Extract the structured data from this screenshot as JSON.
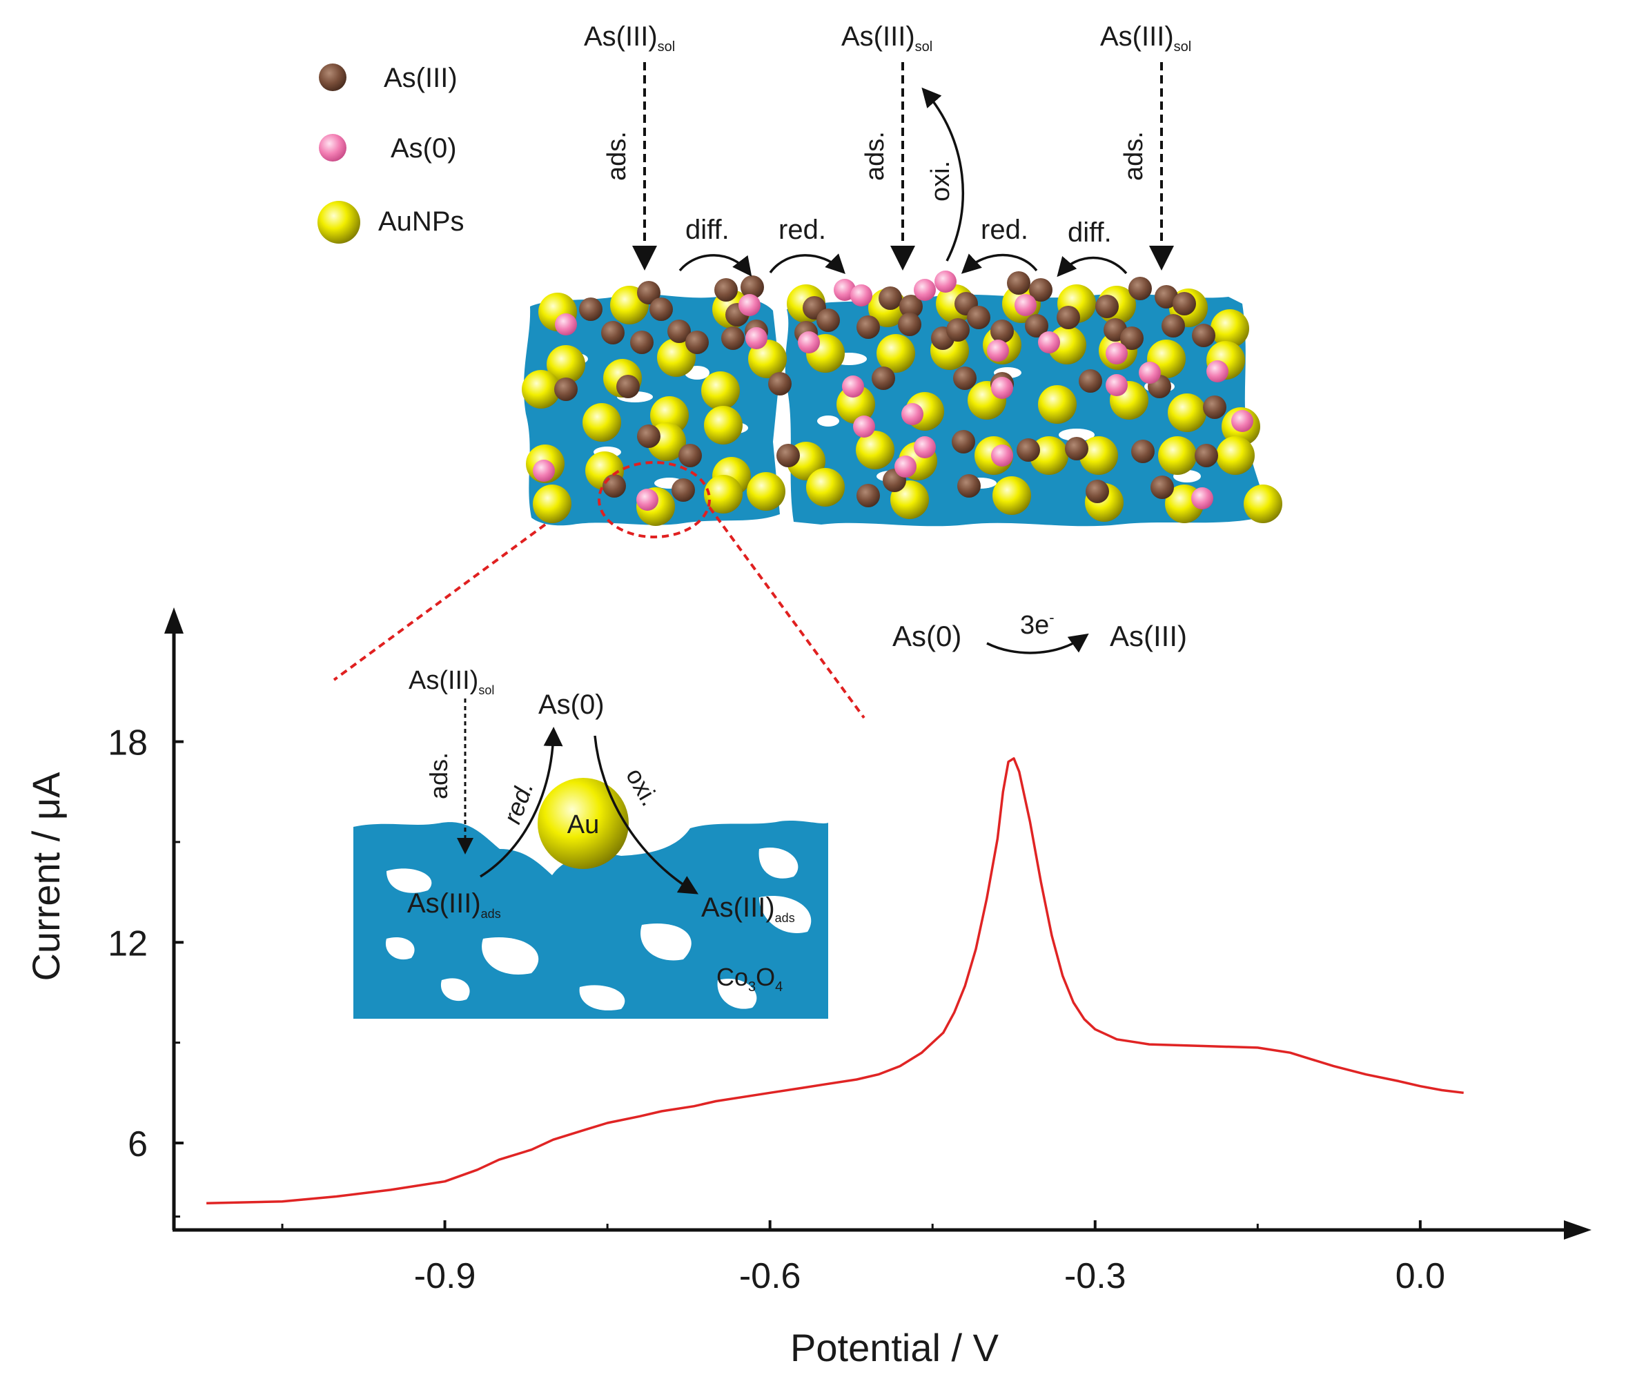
{
  "legend": {
    "as3": "As(III)",
    "as0": "As(0)",
    "aunp": "AuNPs"
  },
  "top_schematic": {
    "sol_base": "As(III)",
    "sol_sub": "sol",
    "ads": "ads.",
    "diff": "diff.",
    "red": "red.",
    "oxi": "oxi."
  },
  "reaction": {
    "reactant": "As(0)",
    "electrons": "3e",
    "electrons_sup": "-",
    "product": "As(III)"
  },
  "inset": {
    "sol_base": "As(III)",
    "sol_sub": "sol",
    "as0": "As(0)",
    "ads": "ads.",
    "red": "red.",
    "oxi": "oxi.",
    "au": "Au",
    "ads_base": "As(III)",
    "ads_sub": "ads",
    "support_base": "Co",
    "support_sub1": "3",
    "support_o": "O",
    "support_sub2": "4"
  },
  "colors": {
    "curve": "#e02424",
    "co3o4": "#1a8fc0",
    "as3": "#7a4f3a",
    "as0": "#f37fb4",
    "aunp": "#f2ee00",
    "zoom": "#e02020"
  },
  "chart_data": {
    "type": "line",
    "xlabel": "Potential / V",
    "ylabel": "Current / μA",
    "xlim": [
      -1.15,
      0.13
    ],
    "ylim": [
      3.4,
      21.5
    ],
    "xticks": [
      -0.9,
      -0.6,
      -0.3,
      0.0
    ],
    "xtick_labels": [
      "-0.9",
      "-0.6",
      "-0.3",
      "0.0"
    ],
    "yticks": [
      6,
      12,
      18
    ],
    "ytick_labels": [
      "6",
      "12",
      "18"
    ],
    "x": [
      -1.12,
      -1.05,
      -1.0,
      -0.95,
      -0.9,
      -0.87,
      -0.85,
      -0.82,
      -0.8,
      -0.77,
      -0.75,
      -0.72,
      -0.7,
      -0.67,
      -0.65,
      -0.62,
      -0.6,
      -0.57,
      -0.55,
      -0.52,
      -0.5,
      -0.48,
      -0.46,
      -0.44,
      -0.43,
      -0.42,
      -0.41,
      -0.4,
      -0.39,
      -0.385,
      -0.38,
      -0.375,
      -0.37,
      -0.36,
      -0.35,
      -0.34,
      -0.33,
      -0.32,
      -0.31,
      -0.3,
      -0.28,
      -0.25,
      -0.2,
      -0.15,
      -0.12,
      -0.1,
      -0.08,
      -0.05,
      -0.02,
      0.0,
      0.02,
      0.04
    ],
    "y": [
      4.2,
      4.25,
      4.4,
      4.6,
      4.85,
      5.2,
      5.5,
      5.8,
      6.1,
      6.4,
      6.6,
      6.8,
      6.95,
      7.1,
      7.25,
      7.4,
      7.5,
      7.65,
      7.75,
      7.9,
      8.05,
      8.3,
      8.7,
      9.3,
      9.9,
      10.7,
      11.8,
      13.3,
      15.1,
      16.5,
      17.4,
      17.5,
      17.1,
      15.6,
      13.8,
      12.2,
      11.0,
      10.2,
      9.7,
      9.4,
      9.1,
      8.95,
      8.9,
      8.85,
      8.7,
      8.5,
      8.3,
      8.05,
      7.85,
      7.7,
      7.58,
      7.5
    ]
  }
}
